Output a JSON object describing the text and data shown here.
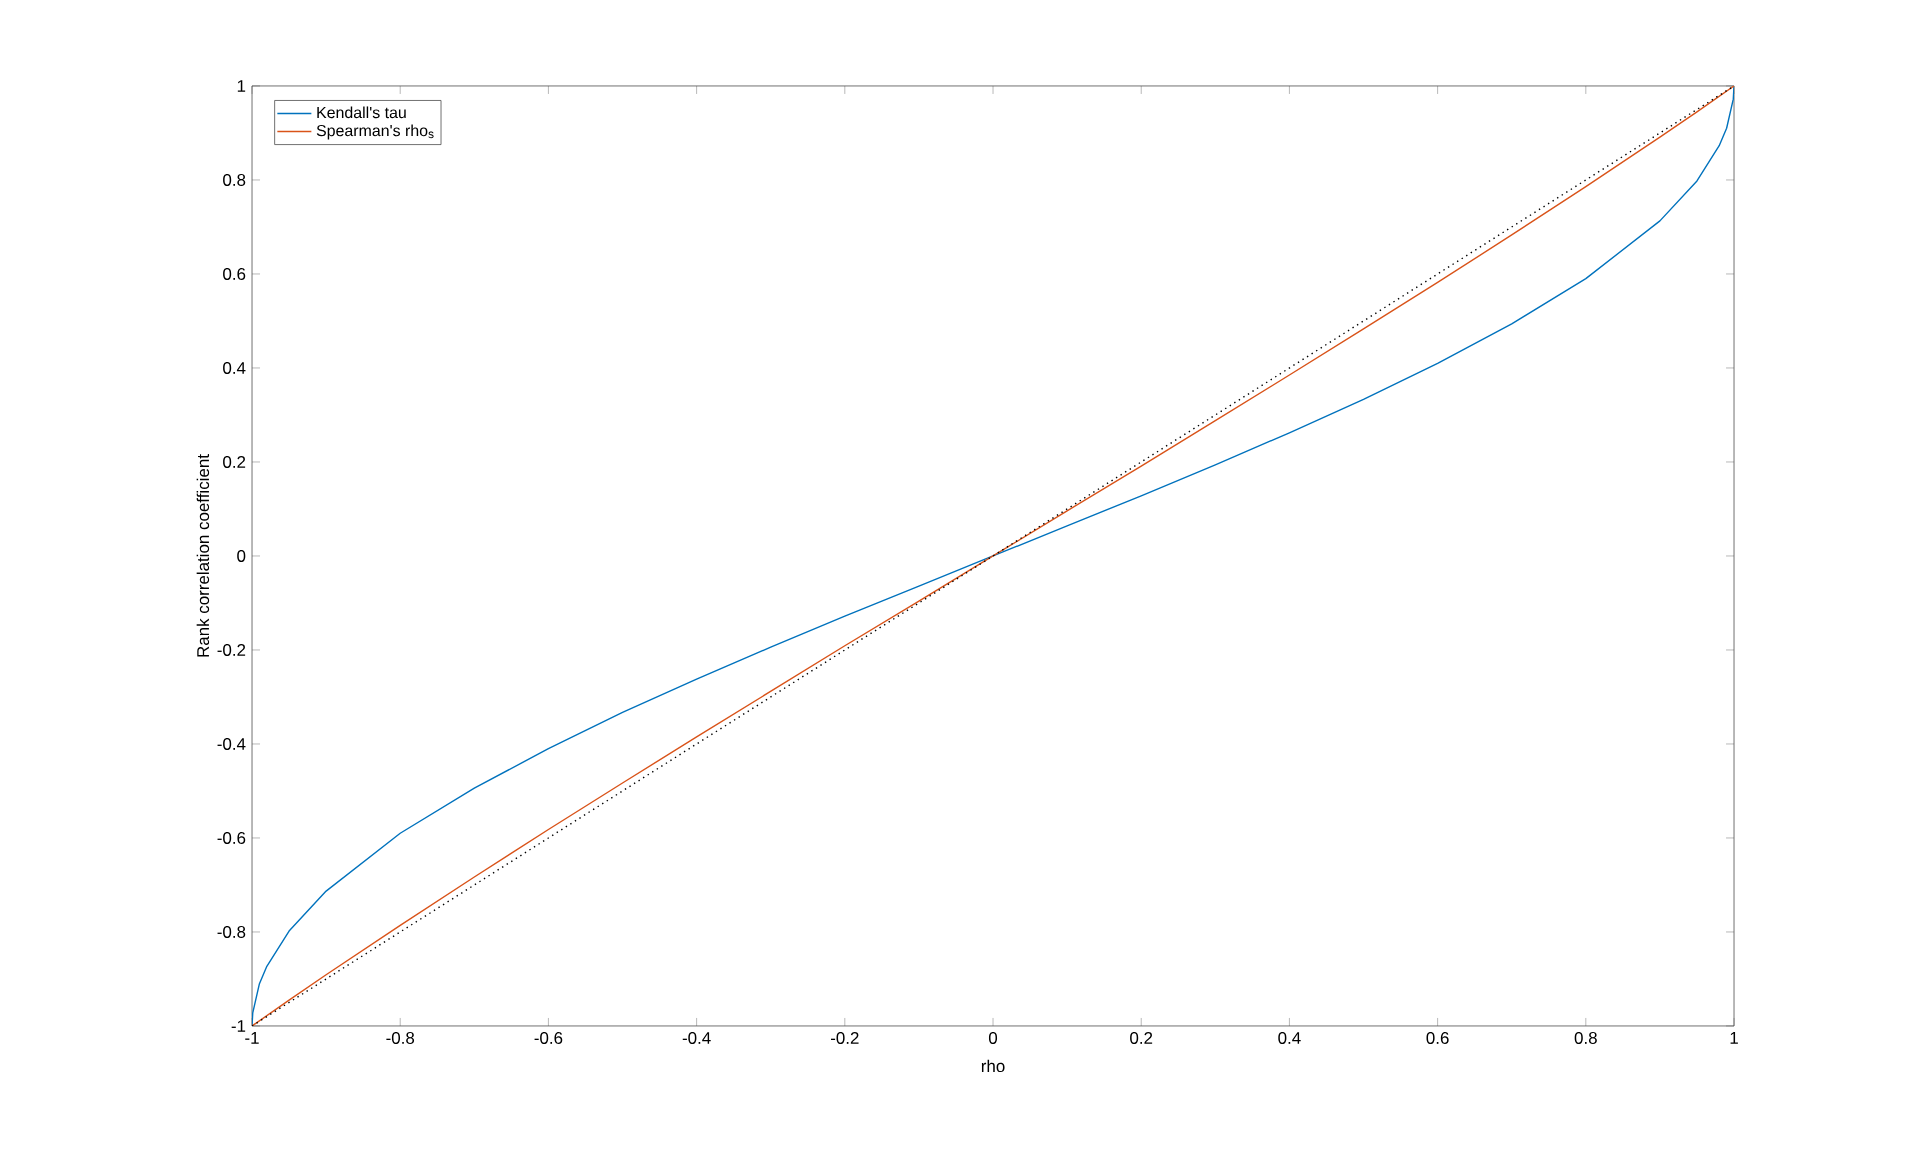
{
  "chart_data": {
    "type": "line",
    "xlabel": "rho",
    "ylabel": "Rank correlation coefficient",
    "series": [
      {
        "name": "Kendall's tau",
        "color": "#0072bd",
        "line_style": "solid",
        "x": [
          -1,
          -0.999,
          -0.99,
          -0.98,
          -0.95,
          -0.9,
          -0.8,
          -0.7,
          -0.6,
          -0.5,
          -0.4,
          -0.3,
          -0.2,
          -0.1,
          0,
          0.1,
          0.2,
          0.3,
          0.4,
          0.5,
          0.6,
          0.7,
          0.8,
          0.9,
          0.95,
          0.98,
          0.99,
          0.999,
          1
        ],
        "values": [
          -1,
          -0.972,
          -0.91,
          -0.873,
          -0.798,
          -0.713,
          -0.59,
          -0.494,
          -0.41,
          -0.333,
          -0.262,
          -0.194,
          -0.128,
          -0.064,
          0,
          0.064,
          0.128,
          0.194,
          0.262,
          0.333,
          0.41,
          0.494,
          0.59,
          0.713,
          0.798,
          0.873,
          0.91,
          0.972,
          1
        ]
      },
      {
        "name": "Spearman's  rho$_{s}$",
        "color": "#d95319",
        "line_style": "solid",
        "x": [
          -1,
          -0.95,
          -0.9,
          -0.8,
          -0.7,
          -0.6,
          -0.5,
          -0.4,
          -0.3,
          -0.2,
          -0.1,
          0,
          0.1,
          0.2,
          0.3,
          0.4,
          0.5,
          0.6,
          0.7,
          0.8,
          0.9,
          0.95,
          1
        ],
        "values": [
          -1,
          -0.945,
          -0.891,
          -0.786,
          -0.683,
          -0.582,
          -0.483,
          -0.385,
          -0.288,
          -0.191,
          -0.096,
          0,
          0.096,
          0.191,
          0.288,
          0.385,
          0.483,
          0.582,
          0.683,
          0.786,
          0.891,
          0.945,
          1
        ]
      },
      {
        "color": "#000000",
        "line_style": "dotted",
        "x": [
          -1,
          1
        ],
        "values": [
          -1,
          1
        ]
      }
    ],
    "xlim": [
      -1,
      1
    ],
    "ylim": [
      -1,
      1
    ],
    "xticks": [
      -1,
      -0.8,
      -0.6,
      -0.4,
      -0.2,
      0,
      0.2,
      0.4,
      0.6,
      0.8,
      1
    ],
    "yticks": [
      -1,
      -0.8,
      -0.6,
      -0.4,
      -0.2,
      0,
      0.2,
      0.4,
      0.6,
      0.8,
      1
    ],
    "grid": false,
    "legend": "top left"
  }
}
